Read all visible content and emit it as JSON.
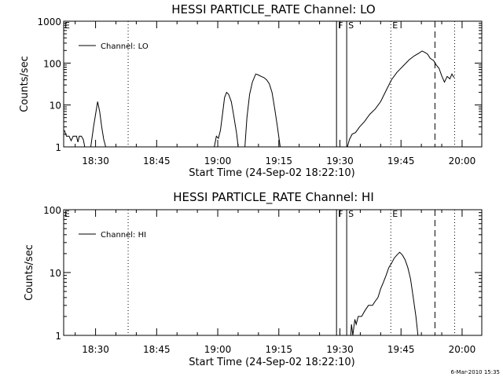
{
  "footer": {
    "date_stamp": "6-Mar-2010 15:35"
  },
  "chart_data": [
    {
      "type": "line",
      "title": "HESSI PARTICLE_RATE Channel: LO",
      "xlabel": "Start Time (24-Sep-02 18:22:10)",
      "ylabel": "Counts/sec",
      "y_scale": "log",
      "ylim": [
        1,
        1000
      ],
      "xlim": [
        "18:22:10",
        "20:04:50"
      ],
      "x_ticks": [
        "18:30",
        "18:45",
        "19:00",
        "19:15",
        "19:30",
        "19:45",
        "20:00"
      ],
      "y_ticks": [
        "1",
        "10",
        "100",
        "1000"
      ],
      "legend": {
        "label": "Channel: LO",
        "placement": "top-left"
      },
      "markers": [
        {
          "time": "18:38:00",
          "style": "dotted",
          "label": ""
        },
        {
          "time": "19:29:10",
          "style": "solid",
          "label": "F"
        },
        {
          "time": "19:31:40",
          "style": "solid",
          "label": "S"
        },
        {
          "time": "19:42:30",
          "style": "dotted",
          "label": "E"
        },
        {
          "time": "19:53:20",
          "style": "dashed",
          "label": ""
        },
        {
          "time": "19:58:10",
          "style": "dotted",
          "label": ""
        }
      ],
      "series": [
        {
          "segments": [
            [
              [
                "18:22:20",
                2.5
              ],
              [
                "18:22:50",
                1.8
              ],
              [
                "18:23:30",
                1.8
              ],
              [
                "18:24:00",
                1.4
              ],
              [
                "18:24:30",
                1.8
              ],
              [
                "18:25:20",
                1.8
              ],
              [
                "18:25:40",
                1.3
              ],
              [
                "18:26:00",
                1.8
              ],
              [
                "18:26:30",
                1.8
              ],
              [
                "18:27:00",
                1.5
              ],
              [
                "18:27:20",
                1
              ]
            ],
            [
              [
                "18:28:50",
                1
              ],
              [
                "18:29:30",
                3
              ],
              [
                "18:30:00",
                6
              ],
              [
                "18:30:30",
                12
              ],
              [
                "18:31:00",
                7
              ],
              [
                "18:31:30",
                3
              ],
              [
                "18:32:00",
                1.5
              ],
              [
                "18:32:30",
                1
              ]
            ],
            [
              [
                "18:59:10",
                1
              ],
              [
                "18:59:40",
                1.8
              ],
              [
                "19:00:10",
                1.6
              ],
              [
                "19:00:40",
                2.5
              ],
              [
                "19:01:10",
                6
              ],
              [
                "19:01:40",
                15
              ],
              [
                "19:02:10",
                20
              ],
              [
                "19:02:40",
                18
              ],
              [
                "19:03:20",
                12
              ],
              [
                "19:04:00",
                5
              ],
              [
                "19:04:40",
                2
              ],
              [
                "19:05:00",
                1
              ]
            ],
            [
              [
                "19:06:40",
                1
              ],
              [
                "19:07:10",
                5
              ],
              [
                "19:07:50",
                18
              ],
              [
                "19:08:30",
                35
              ],
              [
                "19:09:20",
                55
              ],
              [
                "19:10:00",
                52
              ],
              [
                "19:10:40",
                48
              ],
              [
                "19:11:20",
                45
              ],
              [
                "19:12:00",
                40
              ],
              [
                "19:12:40",
                32
              ],
              [
                "19:13:20",
                20
              ],
              [
                "19:14:00",
                8
              ],
              [
                "19:14:40",
                3
              ],
              [
                "19:15:20",
                1
              ]
            ],
            [
              [
                "19:31:50",
                1
              ],
              [
                "19:32:20",
                1.5
              ],
              [
                "19:33:00",
                2
              ],
              [
                "19:33:50",
                2.2
              ],
              [
                "19:34:50",
                3
              ],
              [
                "19:36:00",
                4
              ],
              [
                "19:37:20",
                6
              ],
              [
                "19:38:40",
                8
              ],
              [
                "19:40:00",
                12
              ],
              [
                "19:41:20",
                22
              ],
              [
                "19:42:40",
                40
              ],
              [
                "19:44:00",
                60
              ],
              [
                "19:45:30",
                85
              ],
              [
                "19:47:00",
                120
              ],
              [
                "19:48:20",
                150
              ],
              [
                "19:49:30",
                175
              ],
              [
                "19:50:10",
                195
              ],
              [
                "19:50:50",
                180
              ],
              [
                "19:51:30",
                165
              ],
              [
                "19:52:10",
                130
              ],
              [
                "19:53:00",
                115
              ],
              [
                "19:53:40",
                90
              ],
              [
                "19:54:20",
                75
              ],
              [
                "19:55:00",
                50
              ],
              [
                "19:55:40",
                35
              ],
              [
                "19:56:20",
                48
              ],
              [
                "19:57:00",
                42
              ],
              [
                "19:57:30",
                55
              ],
              [
                "19:58:00",
                45
              ]
            ]
          ]
        }
      ]
    },
    {
      "type": "line",
      "title": "HESSI PARTICLE_RATE Channel: HI",
      "xlabel": "Start Time (24-Sep-02 18:22:10)",
      "ylabel": "Counts/sec",
      "y_scale": "log",
      "ylim": [
        1,
        100
      ],
      "xlim": [
        "18:22:10",
        "20:04:50"
      ],
      "x_ticks": [
        "18:30",
        "18:45",
        "19:00",
        "19:15",
        "19:30",
        "19:45",
        "20:00"
      ],
      "y_ticks": [
        "1",
        "10",
        "100"
      ],
      "legend": {
        "label": "Channel: HI",
        "placement": "top-left"
      },
      "markers": [
        {
          "time": "18:38:00",
          "style": "dotted",
          "label": ""
        },
        {
          "time": "19:29:10",
          "style": "solid",
          "label": "F"
        },
        {
          "time": "19:31:40",
          "style": "solid",
          "label": "S"
        },
        {
          "time": "19:42:30",
          "style": "dotted",
          "label": "E"
        },
        {
          "time": "19:53:20",
          "style": "dashed",
          "label": ""
        },
        {
          "time": "19:58:10",
          "style": "dotted",
          "label": ""
        }
      ],
      "series": [
        {
          "segments": [
            [
              [
                "19:32:40",
                1
              ],
              [
                "19:32:50",
                1.5
              ],
              [
                "19:33:10",
                1
              ],
              [
                "19:33:40",
                1.8
              ],
              [
                "19:34:00",
                1.5
              ],
              [
                "19:34:30",
                2
              ],
              [
                "19:35:20",
                2
              ],
              [
                "19:36:10",
                2.5
              ],
              [
                "19:37:00",
                3
              ],
              [
                "19:38:00",
                3
              ],
              [
                "19:38:40",
                3.5
              ],
              [
                "19:39:20",
                4
              ],
              [
                "19:40:00",
                5.5
              ],
              [
                "19:40:40",
                7
              ],
              [
                "19:41:20",
                9
              ],
              [
                "19:42:00",
                12
              ],
              [
                "19:42:40",
                14
              ],
              [
                "19:43:20",
                17
              ],
              [
                "19:44:00",
                19
              ],
              [
                "19:44:40",
                21
              ],
              [
                "19:45:20",
                19
              ],
              [
                "19:46:00",
                16
              ],
              [
                "19:46:40",
                12
              ],
              [
                "19:47:20",
                8
              ],
              [
                "19:48:00",
                4
              ],
              [
                "19:48:40",
                2
              ],
              [
                "19:49:10",
                1
              ]
            ]
          ]
        }
      ]
    }
  ]
}
